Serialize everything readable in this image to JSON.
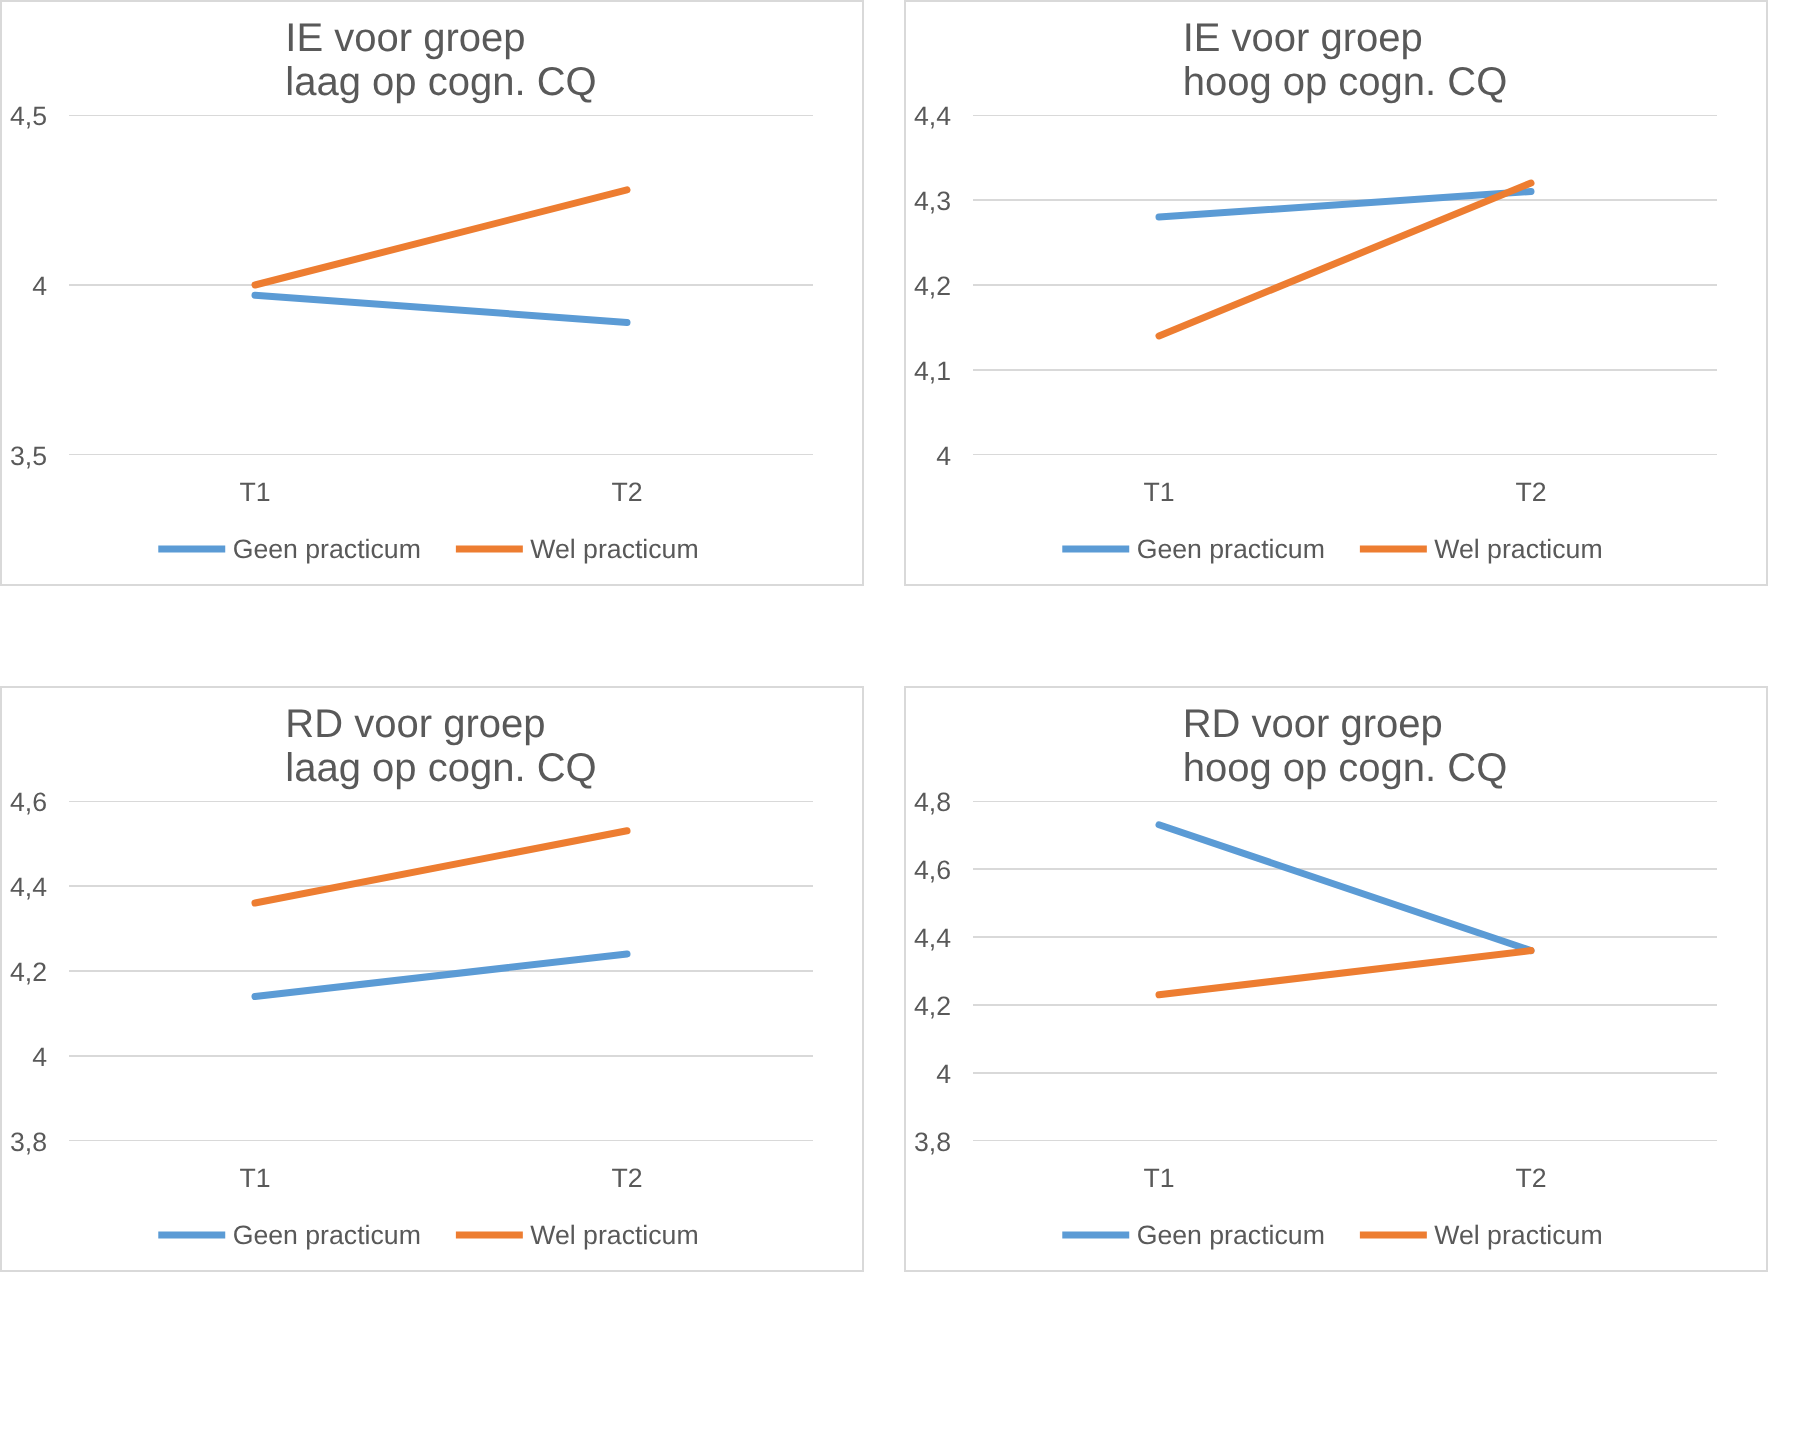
{
  "chart_data": [
    {
      "type": "line",
      "title": "IE voor groep\nlaag op cogn. CQ",
      "categories": [
        "T1",
        "T2"
      ],
      "series": [
        {
          "name": "Geen practicum",
          "color": "#5b9bd5",
          "values": [
            3.97,
            3.89
          ]
        },
        {
          "name": "Wel practicum",
          "color": "#ed7d31",
          "values": [
            4.0,
            4.28
          ]
        }
      ],
      "ylim": [
        3.5,
        4.5
      ],
      "yticks": [
        {
          "value": 3.5,
          "label": "3,5"
        },
        4,
        {
          "value": 4.5,
          "label": "4,5"
        }
      ],
      "grid": "y",
      "legend": "bottom"
    },
    {
      "type": "line",
      "title": "IE voor groep\nhoog op cogn. CQ",
      "categories": [
        "T1",
        "T2"
      ],
      "series": [
        {
          "name": "Geen practicum",
          "color": "#5b9bd5",
          "values": [
            4.28,
            4.31
          ]
        },
        {
          "name": "Wel practicum",
          "color": "#ed7d31",
          "values": [
            4.14,
            4.32
          ]
        }
      ],
      "ylim": [
        4,
        4.4
      ],
      "yticks": [
        4,
        {
          "value": 4.1,
          "label": "4,1"
        },
        {
          "value": 4.2,
          "label": "4,2"
        },
        {
          "value": 4.3,
          "label": "4,3"
        },
        {
          "value": 4.4,
          "label": "4,4"
        }
      ],
      "grid": "y",
      "legend": "bottom"
    },
    {
      "type": "line",
      "title": "RD voor groep\nlaag op cogn. CQ",
      "categories": [
        "T1",
        "T2"
      ],
      "series": [
        {
          "name": "Geen practicum",
          "color": "#5b9bd5",
          "values": [
            4.14,
            4.24
          ]
        },
        {
          "name": "Wel practicum",
          "color": "#ed7d31",
          "values": [
            4.36,
            4.53
          ]
        }
      ],
      "ylim": [
        3.8,
        4.6
      ],
      "yticks": [
        {
          "value": 3.8,
          "label": "3,8"
        },
        4,
        {
          "value": 4.2,
          "label": "4,2"
        },
        {
          "value": 4.4,
          "label": "4,4"
        },
        {
          "value": 4.6,
          "label": "4,6"
        }
      ],
      "grid": "y",
      "legend": "bottom"
    },
    {
      "type": "line",
      "title": "RD voor groep\nhoog op cogn. CQ",
      "categories": [
        "T1",
        "T2"
      ],
      "series": [
        {
          "name": "Geen practicum",
          "color": "#5b9bd5",
          "values": [
            4.73,
            4.36
          ]
        },
        {
          "name": "Wel practicum",
          "color": "#ed7d31",
          "values": [
            4.23,
            4.36
          ]
        }
      ],
      "ylim": [
        3.8,
        4.8
      ],
      "yticks": [
        {
          "value": 3.8,
          "label": "3,8"
        },
        4,
        {
          "value": 4.2,
          "label": "4,2"
        },
        {
          "value": 4.4,
          "label": "4,4"
        },
        {
          "value": 4.6,
          "label": "4,6"
        },
        {
          "value": 4.8,
          "label": "4,8"
        }
      ],
      "grid": "y",
      "legend": "bottom"
    }
  ]
}
